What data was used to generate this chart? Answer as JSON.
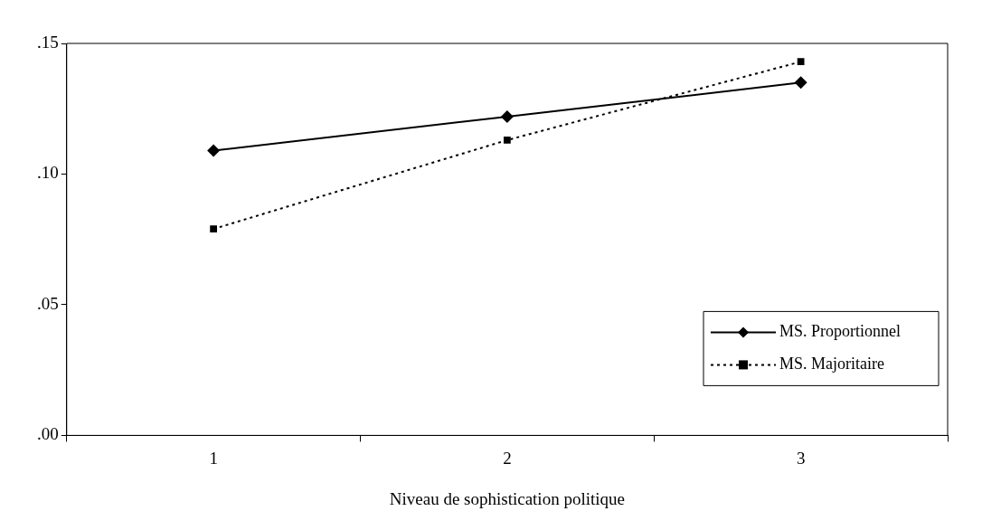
{
  "chart_data": {
    "type": "line",
    "xlabel": "Niveau de sophistication politique",
    "categories": [
      "1",
      "2",
      "3"
    ],
    "series": [
      {
        "name": "MS. Proportionnel",
        "color": "#000000",
        "values": [
          0.109,
          0.122,
          0.135
        ],
        "marker": "diamond",
        "line_style": "solid"
      },
      {
        "name": "MS. Majoritaire",
        "color": "#000000",
        "values": [
          0.079,
          0.113,
          0.143
        ],
        "marker": "square",
        "line_style": "dotted"
      }
    ],
    "ylim": [
      0,
      0.15
    ],
    "yticks": [
      {
        "value": 0,
        "label": ".00"
      },
      {
        "value": 0.05,
        "label": ".05"
      },
      {
        "value": 0.1,
        "label": ".10"
      },
      {
        "value": 0.15,
        "label": ".15"
      }
    ],
    "grid": false,
    "legend": "bottom right"
  }
}
